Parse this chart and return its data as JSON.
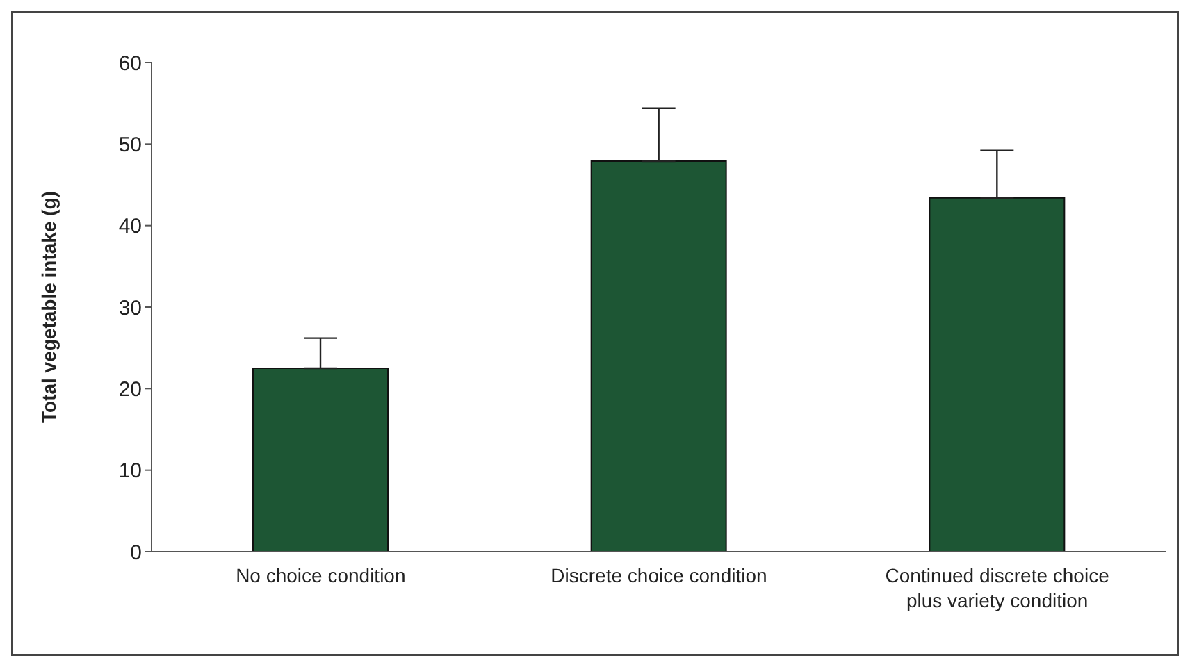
{
  "chart_data": {
    "type": "bar",
    "ylabel": "Total vegetable intake (g)",
    "categories": [
      "No choice condition",
      "Discrete choice condition",
      "Continued discrete choice plus variety condition"
    ],
    "values": [
      22.5,
      47.9,
      43.4
    ],
    "errors": [
      [
        22.5,
        26.2
      ],
      [
        47.9,
        54.4
      ],
      [
        43.4,
        49.2
      ]
    ],
    "color": "#1d5634",
    "ylim": [
      0,
      60
    ],
    "yticks": [
      0,
      10,
      20,
      30,
      40,
      50,
      60
    ],
    "grid": false,
    "legend": false
  }
}
